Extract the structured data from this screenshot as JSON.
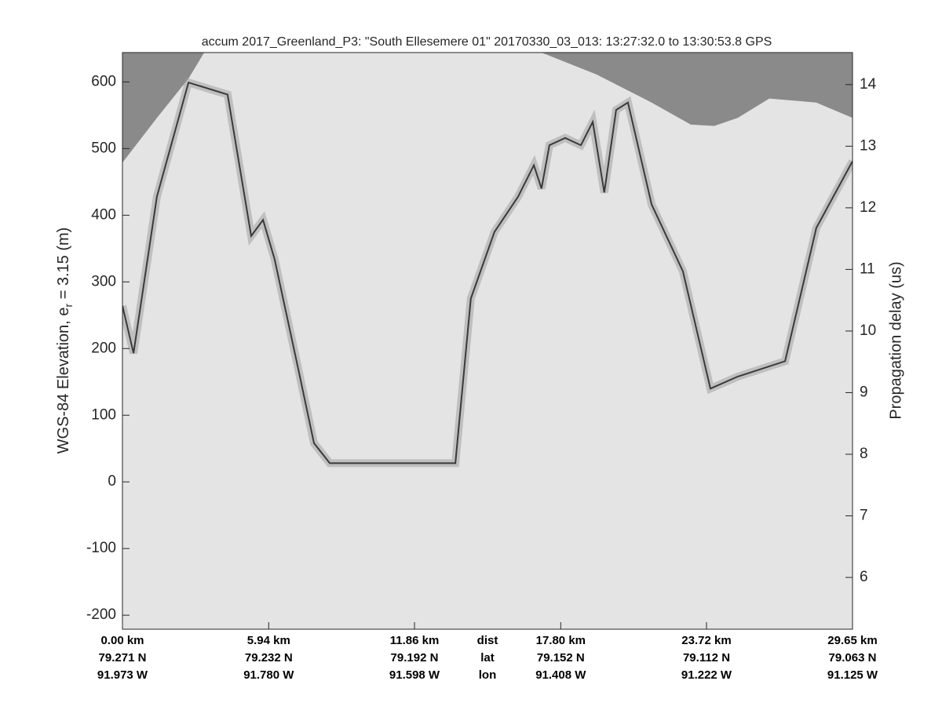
{
  "chart_data": {
    "type": "echogram",
    "title": "accum 2017_Greenland_P3: \"South Ellesemere 01\"  20170330_03_013: 13:27:32.0 to 13:30:53.8 GPS",
    "ylabel": [
      "WGS-84 Elevation, e",
      "r",
      " = 3.15 (m)"
    ],
    "y2label": "Propagation delay (us)",
    "xlim": [
      0,
      29.65
    ],
    "xticks": [
      {
        "value": 0,
        "label": "0.00 km"
      },
      {
        "value": 5.94,
        "label": "5.94 km"
      },
      {
        "value": 11.86,
        "label": "11.86 km"
      },
      {
        "value": 17.8,
        "label": "17.80 km"
      },
      {
        "value": 23.72,
        "label": "23.72 km"
      },
      {
        "value": 29.65,
        "label": "29.65 km"
      }
    ],
    "row_names": [
      "dist",
      "lat",
      "lon"
    ],
    "lat_labels": [
      "79.271 N",
      "79.232 N",
      "79.192 N",
      "79.152 N",
      "79.112 N",
      "79.063 N"
    ],
    "lon_labels": [
      "91.973 W",
      "91.780 W",
      "91.598 W",
      "91.408 W",
      "91.222 W",
      "91.125 W"
    ],
    "ylim": [
      -221,
      644
    ],
    "yticks": [
      -200,
      -100,
      0,
      100,
      200,
      300,
      400,
      500,
      600
    ],
    "y2lim": [
      5.16,
      14.52
    ],
    "y2ticks": [
      6,
      7,
      8,
      9,
      10,
      11,
      12,
      13,
      14
    ],
    "background": "#e4e4e4",
    "series": [
      {
        "color": "#8a8a8a",
        "x": [
          0,
          1.4,
          2.68,
          3.32,
          17.02,
          19.26,
          21.49,
          23.08,
          24.04,
          24.99,
          26.27,
          28.18,
          29.65
        ],
        "values": [
          479,
          546,
          605,
          644,
          644,
          611,
          569,
          536,
          534,
          546,
          575,
          569,
          546
        ]
      },
      {
        "color": "#3a3a3a",
        "x": [
          0,
          0.45,
          1.4,
          2.68,
          4.27,
          5.23,
          5.71,
          6.18,
          7.14,
          7.78,
          8.42,
          13.52,
          14.15,
          15.11,
          16.07,
          16.71,
          17.02,
          17.34,
          17.98,
          18.62,
          19.1,
          19.57,
          20.05,
          20.53,
          21.49,
          22.76,
          23.88,
          24.99,
          26.91,
          28.18,
          29.65
        ],
        "values": [
          264,
          193,
          428,
          599,
          581,
          369,
          393,
          334,
          169,
          58,
          28,
          28,
          275,
          375,
          428,
          475,
          440,
          505,
          516,
          505,
          540,
          434,
          558,
          569,
          416,
          316,
          140,
          158,
          181,
          381,
          481
        ]
      }
    ]
  }
}
